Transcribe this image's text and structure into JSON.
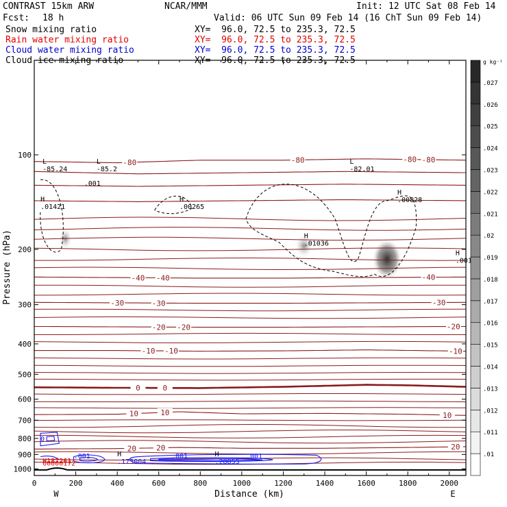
{
  "header": {
    "model": "CONTRAST 15km ARW",
    "org": "NCAR/MMM",
    "init": "Init: 12 UTC Sat 08 Feb 14",
    "fcst_label": "Fcst:",
    "fcst_value": "18 h",
    "valid": "Valid: 06 UTC Sun 09 Feb 14 (16 ChT Sun 09 Feb 14)"
  },
  "fields": [
    {
      "name": "Snow mixing ratio",
      "xy": "XY=  96.0, 72.5 to 235.3, 72.5",
      "color": "#000000"
    },
    {
      "name": "Rain water mixing ratio",
      "xy": "XY=  96.0, 72.5 to 235.3, 72.5",
      "color": "#e00000"
    },
    {
      "name": "Cloud water mixing ratio",
      "xy": "XY=  96.0, 72.5 to 235.3, 72.5",
      "color": "#0000d0"
    },
    {
      "name": "Cloud ice mixing ratio",
      "xy": "XY=  96.0, 72.5 to 235.3, 72.5",
      "color": "#000000"
    }
  ],
  "colors": {
    "temperature": "#8b1a1a",
    "cloud_water": "#1a1aee",
    "rain": "#e00000",
    "snow": "#000000"
  },
  "chart_data": {
    "type": "line",
    "title": "",
    "xlabel": "Distance (km)",
    "ylabel": "Pressure (hPa)",
    "xlim": [
      0,
      2080
    ],
    "ylim": [
      1050,
      50
    ],
    "y_scale": "log",
    "x_ticks": [
      0,
      200,
      400,
      600,
      800,
      1000,
      1200,
      1400,
      1600,
      1800,
      2000
    ],
    "y_ticks": [
      100,
      200,
      300,
      400,
      500,
      600,
      700,
      800,
      900,
      1000
    ],
    "direction_labels": {
      "left": "W",
      "right": "E"
    },
    "colorbar": {
      "unit": "g kg⁻¹",
      "levels": [
        ".01",
        ".011",
        ".012",
        ".013",
        ".014",
        ".015",
        ".016",
        ".017",
        ".018",
        ".019",
        ".02",
        ".021",
        ".022",
        ".023",
        ".024",
        ".025",
        ".026",
        ".027"
      ]
    },
    "temperature_contours": [
      {
        "value": -80,
        "label": "-80",
        "label_x": [
          460,
          1270,
          1810,
          1900
        ],
        "points": [
          [
            0,
            105
          ],
          [
            400,
            106
          ],
          [
            800,
            104
          ],
          [
            1200,
            104
          ],
          [
            1600,
            103
          ],
          [
            2080,
            104
          ]
        ]
      },
      {
        "value": -70,
        "label": "",
        "label_x": [],
        "points": [
          [
            0,
            113
          ],
          [
            500,
            115
          ],
          [
            1000,
            114
          ],
          [
            1500,
            113
          ],
          [
            2080,
            114
          ]
        ]
      },
      {
        "value": -60,
        "label": "",
        "label_x": [],
        "points": [
          [
            0,
            125
          ],
          [
            500,
            126
          ],
          [
            1000,
            125
          ],
          [
            1500,
            124
          ],
          [
            2080,
            125
          ]
        ]
      },
      {
        "value": -50,
        "label": "",
        "label_x": [],
        "points": [
          [
            0,
            140
          ],
          [
            500,
            141
          ],
          [
            1000,
            140
          ],
          [
            1500,
            139
          ],
          [
            2080,
            140
          ]
        ]
      },
      {
        "value": -40,
        "label": "-40",
        "label_x": [
          500,
          620,
          1900
        ],
        "points": [
          [
            0,
            245
          ],
          [
            400,
            246
          ],
          [
            800,
            247
          ],
          [
            1200,
            247
          ],
          [
            1600,
            246
          ],
          [
            2080,
            245
          ]
        ]
      },
      {
        "value": -30,
        "label": "-30",
        "label_x": [
          400,
          600,
          1950
        ],
        "points": [
          [
            0,
            295
          ],
          [
            400,
            296
          ],
          [
            800,
            297
          ],
          [
            1200,
            297
          ],
          [
            1600,
            296
          ],
          [
            2080,
            295
          ]
        ]
      },
      {
        "value": -20,
        "label": "-20",
        "label_x": [
          600,
          720,
          2020
        ],
        "points": [
          [
            0,
            352
          ],
          [
            400,
            353
          ],
          [
            800,
            354
          ],
          [
            1200,
            354
          ],
          [
            1600,
            353
          ],
          [
            2080,
            352
          ]
        ]
      },
      {
        "value": -10,
        "label": "-10",
        "label_x": [
          550,
          660,
          2030
        ],
        "points": [
          [
            0,
            420
          ],
          [
            400,
            420
          ],
          [
            800,
            422
          ],
          [
            1200,
            421
          ],
          [
            1600,
            418
          ],
          [
            2080,
            422
          ]
        ]
      },
      {
        "value": 0,
        "label": "0",
        "label_x": [
          500,
          630
        ],
        "points": [
          [
            0,
            550
          ],
          [
            400,
            552
          ],
          [
            800,
            553
          ],
          [
            1200,
            548
          ],
          [
            1600,
            540
          ],
          [
            1800,
            542
          ],
          [
            2080,
            548
          ]
        ]
      },
      {
        "value": 10,
        "label": "10",
        "label_x": [
          480,
          630,
          1990
        ],
        "points": [
          [
            0,
            672
          ],
          [
            400,
            670
          ],
          [
            700,
            658
          ],
          [
            1000,
            668
          ],
          [
            1400,
            666
          ],
          [
            1800,
            670
          ],
          [
            2080,
            676
          ]
        ]
      },
      {
        "value": 20,
        "label": "20",
        "label_x": [
          470,
          610,
          2030
        ],
        "points": [
          [
            0,
            865
          ],
          [
            400,
            862
          ],
          [
            700,
            855
          ],
          [
            1000,
            860
          ],
          [
            1400,
            860
          ],
          [
            1800,
            855
          ],
          [
            2080,
            850
          ]
        ]
      }
    ],
    "extrema": [
      {
        "type": "L",
        "value": "-85.24",
        "x": 40,
        "p": 110
      },
      {
        "type": "L",
        "value": "-85.2",
        "x": 300,
        "p": 110
      },
      {
        "type": "L",
        "value": "-82.01",
        "x": 1520,
        "p": 110
      },
      {
        "type": "H",
        "value": ".01421",
        "x": 30,
        "p": 145
      },
      {
        "type": "H",
        "value": ".00265",
        "x": 700,
        "p": 145
      },
      {
        "type": "H",
        "value": ".00828",
        "x": 1750,
        "p": 138
      },
      {
        "type": "H",
        "value": ".01036",
        "x": 1300,
        "p": 190
      },
      {
        "type": "H",
        "value": ".001",
        "x": 2030,
        "p": 215
      },
      {
        "type": "H",
        "value": ".173004",
        "x": 400,
        "p": 940
      },
      {
        "type": "H",
        "value": ".28855",
        "x": 870,
        "p": 940
      }
    ],
    "rain_extrema": [
      {
        "type": "H",
        "value": "187261",
        "x": 40,
        "p": 940
      },
      {
        "type": "H",
        "value": "00000172",
        "x": 40,
        "p": 958
      }
    ],
    "cloud_water_labels": [
      {
        "value": ".001",
        "x": 230,
        "p": 907
      },
      {
        "value": ".001",
        "x": 700,
        "p": 907
      },
      {
        "value": ".001",
        "x": 1060,
        "p": 907
      },
      {
        "value": ".001",
        "x": 280,
        "p": 123
      },
      {
        "value": "0",
        "x": 40,
        "p": 800
      }
    ]
  }
}
